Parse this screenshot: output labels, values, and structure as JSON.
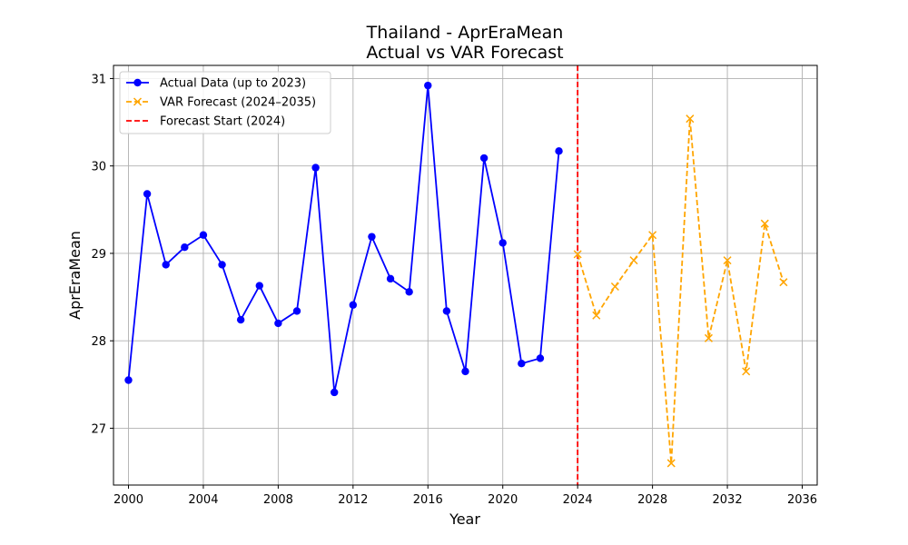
{
  "chart_data": {
    "type": "line",
    "title": "Thailand - AprEraMean",
    "subtitle": "Actual vs VAR Forecast",
    "xlabel": "Year",
    "ylabel": "AprEraMean",
    "xlim": [
      1999.2,
      2036.8
    ],
    "ylim": [
      26.35,
      31.15
    ],
    "x_ticks": [
      2000,
      2004,
      2008,
      2012,
      2016,
      2020,
      2024,
      2028,
      2032,
      2036
    ],
    "y_ticks": [
      27,
      28,
      29,
      30,
      31
    ],
    "grid": true,
    "legend_position": "top-left",
    "series": [
      {
        "name": "Actual Data (up to 2023)",
        "color": "#0000ff",
        "style": "solid",
        "marker": "circle",
        "x": [
          2000,
          2001,
          2002,
          2003,
          2004,
          2005,
          2006,
          2007,
          2008,
          2009,
          2010,
          2011,
          2012,
          2013,
          2014,
          2015,
          2016,
          2017,
          2018,
          2019,
          2020,
          2021,
          2022,
          2023
        ],
        "values": [
          27.55,
          29.68,
          28.87,
          29.07,
          29.21,
          28.87,
          28.24,
          28.63,
          28.2,
          28.34,
          29.98,
          27.41,
          28.41,
          29.19,
          28.71,
          28.56,
          30.92,
          28.34,
          27.65,
          30.09,
          29.12,
          27.74,
          27.8,
          30.17
        ]
      },
      {
        "name": "VAR Forecast (2024–2035)",
        "color": "#ffa500",
        "style": "dashed",
        "marker": "x",
        "x": [
          2024,
          2025,
          2026,
          2027,
          2028,
          2029,
          2030,
          2031,
          2032,
          2033,
          2034,
          2035
        ],
        "values": [
          28.99,
          28.29,
          28.62,
          28.92,
          29.21,
          26.6,
          30.54,
          28.03,
          28.92,
          27.65,
          29.34,
          28.67
        ]
      }
    ],
    "vline": {
      "name": "Forecast Start (2024)",
      "x": 2024,
      "color": "#ff0000",
      "style": "dashed"
    }
  }
}
